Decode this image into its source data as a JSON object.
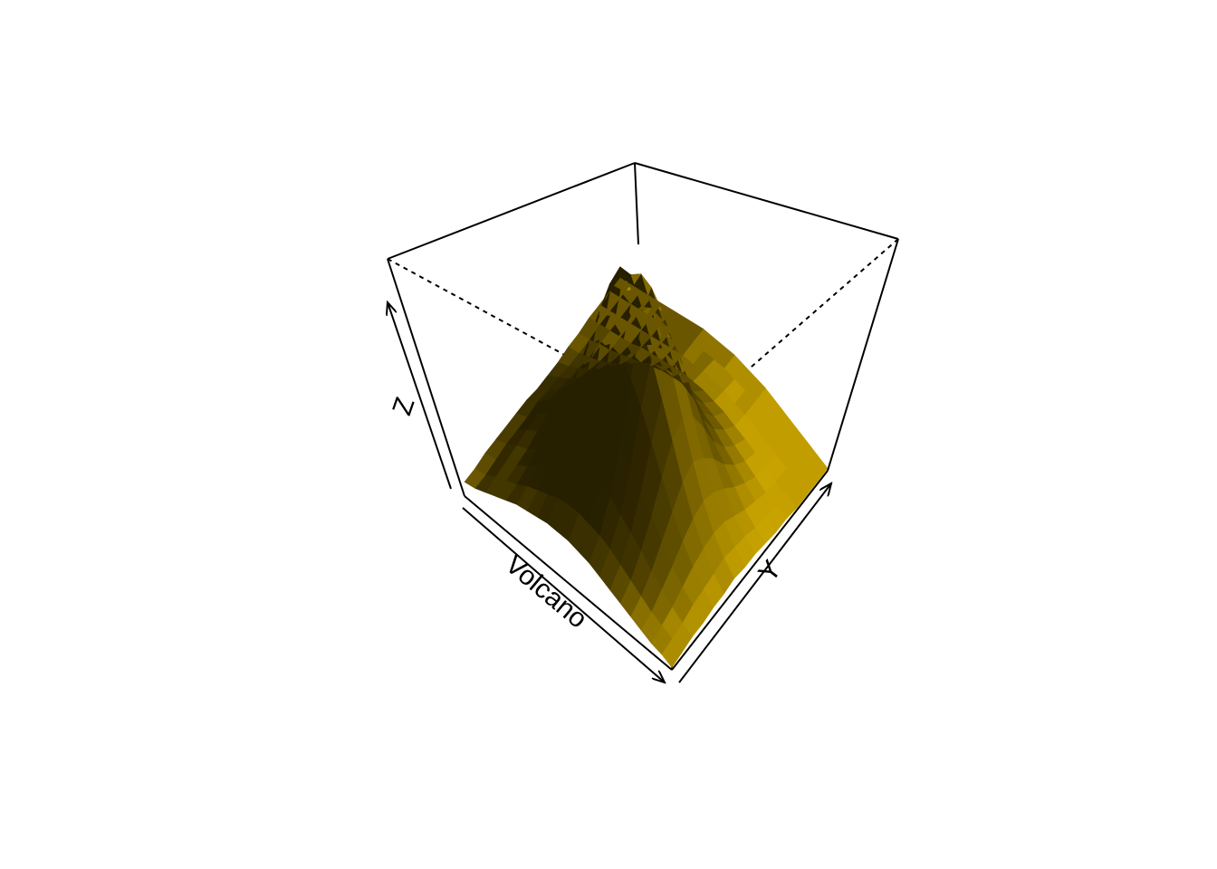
{
  "chart_data": {
    "type": "surface3d",
    "title": "",
    "xlabel": "Volcano",
    "ylabel": "Y",
    "zlabel": "Z",
    "colors": {
      "surface": "#c9a400",
      "dark": "#2a2200",
      "edge": "#3a3000",
      "box": "#000000",
      "background": "#ffffff"
    },
    "view": {
      "theta_deg": 40,
      "phi_deg": 40,
      "shading": true,
      "box": true
    },
    "grid": {
      "nrow": 21,
      "ncol": 16,
      "xlim": [
        1,
        87
      ],
      "ylim": [
        1,
        61
      ],
      "zlim": [
        94,
        195
      ]
    },
    "z": [
      [
        100,
        100,
        101,
        101,
        101,
        101,
        101,
        100,
        100,
        100,
        101,
        101,
        102,
        102,
        102,
        102
      ],
      [
        101,
        101,
        102,
        103,
        103,
        103,
        104,
        103,
        103,
        102,
        102,
        102,
        103,
        103,
        103,
        103
      ],
      [
        103,
        104,
        105,
        106,
        107,
        108,
        108,
        107,
        106,
        105,
        104,
        104,
        104,
        104,
        104,
        104
      ],
      [
        105,
        106,
        107,
        108,
        110,
        112,
        113,
        112,
        110,
        108,
        106,
        105,
        105,
        105,
        105,
        105
      ],
      [
        107,
        108,
        110,
        112,
        116,
        120,
        122,
        120,
        116,
        112,
        109,
        107,
        106,
        106,
        106,
        106
      ],
      [
        109,
        111,
        114,
        118,
        124,
        130,
        133,
        130,
        124,
        117,
        112,
        109,
        108,
        107,
        107,
        107
      ],
      [
        110,
        113,
        118,
        125,
        134,
        143,
        147,
        143,
        133,
        123,
        116,
        111,
        109,
        108,
        108,
        108
      ],
      [
        111,
        115,
        122,
        132,
        145,
        158,
        163,
        157,
        144,
        130,
        120,
        113,
        110,
        109,
        109,
        109
      ],
      [
        112,
        117,
        126,
        140,
        158,
        174,
        180,
        172,
        155,
        137,
        124,
        115,
        111,
        110,
        110,
        110
      ],
      [
        112,
        118,
        129,
        146,
        168,
        186,
        191,
        182,
        163,
        141,
        126,
        116,
        112,
        110,
        110,
        110
      ],
      [
        112,
        118,
        130,
        149,
        173,
        190,
        185,
        186,
        166,
        143,
        127,
        117,
        112,
        111,
        110,
        110
      ],
      [
        111,
        117,
        129,
        148,
        172,
        188,
        179,
        184,
        165,
        142,
        126,
        117,
        112,
        110,
        110,
        110
      ],
      [
        110,
        116,
        127,
        144,
        166,
        182,
        185,
        178,
        160,
        139,
        124,
        116,
        111,
        110,
        109,
        109
      ],
      [
        108,
        114,
        123,
        138,
        157,
        172,
        177,
        170,
        153,
        134,
        121,
        114,
        110,
        108,
        108,
        108
      ],
      [
        106,
        111,
        119,
        131,
        146,
        159,
        164,
        158,
        144,
        128,
        118,
        112,
        108,
        107,
        107,
        107
      ],
      [
        104,
        108,
        115,
        124,
        135,
        145,
        149,
        144,
        134,
        122,
        114,
        109,
        106,
        105,
        105,
        105
      ],
      [
        102,
        105,
        110,
        117,
        124,
        131,
        134,
        130,
        124,
        116,
        110,
        106,
        104,
        103,
        103,
        103
      ],
      [
        100,
        102,
        106,
        110,
        115,
        119,
        121,
        119,
        115,
        110,
        106,
        103,
        102,
        101,
        101,
        101
      ],
      [
        98,
        100,
        102,
        105,
        108,
        110,
        111,
        110,
        107,
        104,
        102,
        100,
        99,
        99,
        99,
        99
      ],
      [
        97,
        98,
        99,
        101,
        102,
        103,
        104,
        103,
        102,
        100,
        99,
        98,
        97,
        97,
        97,
        97
      ],
      [
        95,
        96,
        97,
        97,
        98,
        98,
        99,
        98,
        98,
        97,
        96,
        96,
        95,
        95,
        95,
        95
      ]
    ]
  }
}
